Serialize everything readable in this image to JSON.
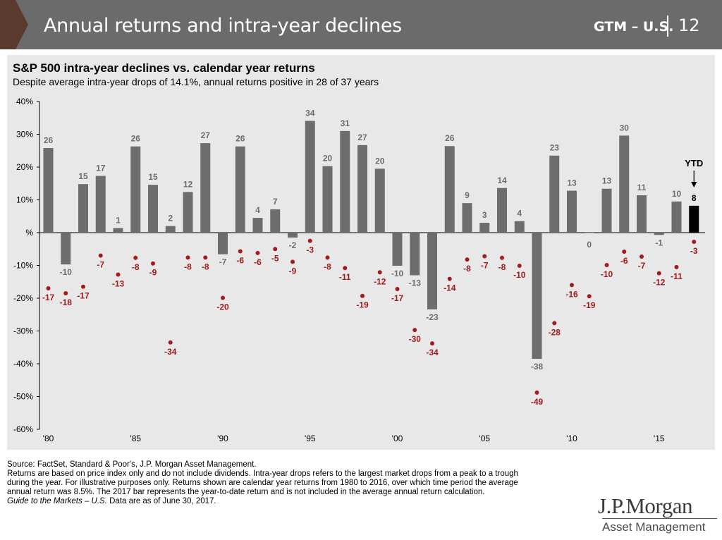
{
  "header": {
    "title": "Annual returns and intra-year declines",
    "code": "GTM – U.S.",
    "page": "12",
    "bar_color": "#6b6b6b",
    "chevron_color": "#5b3a2e"
  },
  "chart_data": {
    "type": "bar",
    "title": "S&P 500 intra-year declines vs. calendar year returns",
    "subtitle": "Despite average intra-year drops of 14.1%, annual returns positive in 28 of 37 years",
    "xlabel": "",
    "ylabel": "",
    "ylim": [
      -60,
      40
    ],
    "y_ticks": [
      40,
      30,
      20,
      10,
      0,
      -10,
      -20,
      -30,
      -40,
      -50,
      -60
    ],
    "y_tick_labels": [
      "40%",
      "30%",
      "20%",
      "10%",
      "%",
      "-10%",
      "-20%",
      "-30%",
      "-40%",
      "-50%",
      "-60%"
    ],
    "x": [
      1980,
      1981,
      1982,
      1983,
      1984,
      1985,
      1986,
      1987,
      1988,
      1989,
      1990,
      1991,
      1992,
      1993,
      1994,
      1995,
      1996,
      1997,
      1998,
      1999,
      2000,
      2001,
      2002,
      2003,
      2004,
      2005,
      2006,
      2007,
      2008,
      2009,
      2010,
      2011,
      2012,
      2013,
      2014,
      2015,
      2016,
      2017
    ],
    "x_tick_labels": [
      {
        "year": 1980,
        "label": "'80"
      },
      {
        "year": 1985,
        "label": "'85"
      },
      {
        "year": 1990,
        "label": "'90"
      },
      {
        "year": 1995,
        "label": "'95"
      },
      {
        "year": 2000,
        "label": "'00"
      },
      {
        "year": 2005,
        "label": "'05"
      },
      {
        "year": 2010,
        "label": "'10"
      },
      {
        "year": 2015,
        "label": "'15"
      }
    ],
    "series": [
      {
        "role": "annual_return",
        "values": [
          25.8,
          -9.7,
          14.8,
          17.3,
          1.4,
          26.3,
          14.6,
          2.0,
          12.4,
          27.3,
          -6.6,
          26.3,
          4.5,
          7.1,
          -1.5,
          34.1,
          20.3,
          31.0,
          26.7,
          19.5,
          -10.1,
          -13.0,
          -23.4,
          26.4,
          9.0,
          3.0,
          13.6,
          3.5,
          -38.5,
          23.5,
          12.8,
          0.0,
          13.4,
          29.6,
          11.4,
          -0.7,
          9.5,
          8.2
        ],
        "labels": [
          "26",
          "-10",
          "15",
          "17",
          "1",
          "26",
          "15",
          "2",
          "12",
          "27",
          "-7",
          "26",
          "4",
          "7",
          "-2",
          "34",
          "20",
          "31",
          "27",
          "20",
          "-10",
          "-13",
          "-23",
          "26",
          "9",
          "3",
          "14",
          "4",
          "-38",
          "23",
          "13",
          "0",
          "13",
          "30",
          "11",
          "-1",
          "10",
          "8"
        ],
        "color": "#6d6d6d",
        "ytd_color": "#000000"
      },
      {
        "role": "intra_year_decline",
        "values": [
          -17,
          -18.5,
          -16.5,
          -7,
          -12.8,
          -7.7,
          -9.4,
          -33.5,
          -7.6,
          -7.6,
          -19.9,
          -5.7,
          -6.2,
          -5,
          -8.9,
          -2.5,
          -7.6,
          -10.8,
          -19.3,
          -12.1,
          -17.2,
          -29.7,
          -33.8,
          -14.1,
          -8.2,
          -7.2,
          -7.7,
          -10.1,
          -48.8,
          -27.6,
          -16,
          -19.4,
          -9.9,
          -5.8,
          -7.3,
          -12.4,
          -10.5,
          -2.8
        ],
        "labels": [
          "-17",
          "-18",
          "-17",
          "-7",
          "-13",
          "-8",
          "-9",
          "-34",
          "-8",
          "-8",
          "-20",
          "-6",
          "-6",
          "-5",
          "-9",
          "-3",
          "-8",
          "-11",
          "-19",
          "-12",
          "-17",
          "-30",
          "-34",
          "-14",
          "-8",
          "-7",
          "-8",
          "-10",
          "-49",
          "-28",
          "-16",
          "-19",
          "-10",
          "-6",
          "-7",
          "-12",
          "-11",
          "-3"
        ],
        "color": "#a01c1c"
      }
    ],
    "ytd_label": "YTD",
    "grid": false,
    "legend": "none"
  },
  "footnote": {
    "source": "Source: FactSet, Standard & Poor's, J.P. Morgan Asset Management.",
    "line1": "Returns are based on price index only and do not include dividends. Intra-year drops refers to the largest market drops from a peak to a trough",
    "line2": "during the year. For illustrative purposes only. Returns shown are calendar year returns from 1980 to 2016, over which time period the average",
    "line3": "annual return was 8.5%. The 2017 bar represents the year-to-date return and is not included in the average annual return calculation.",
    "guide": "Guide to the Markets – U.S.",
    "asof": "Data are as of June 30, 2017."
  },
  "logo": {
    "main": "J.P.Morgan",
    "sub": "Asset Management"
  }
}
